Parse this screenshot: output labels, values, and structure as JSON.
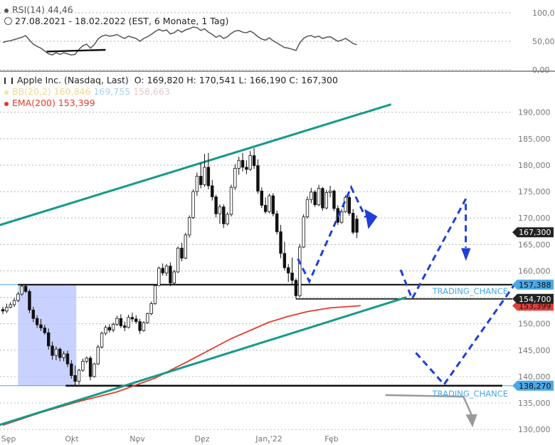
{
  "header": {
    "rsi_label": "RSI(14)",
    "rsi_value": "44,46",
    "range": "27.08.2021 - 18.02.2022",
    "range_info": "(EST, 6 Monate, 1 Tag)",
    "instrument": "Apple Inc. (Nasdaq, Last)",
    "ohlc": "O: 169,820  H: 170,541  L: 166,190  C: 167,300",
    "bb_label": "BB(20,2)",
    "bb_mid": "160,846",
    "bb_upper": "169,755",
    "bb_lower": "158,663",
    "ema_label": "EMA(200)",
    "ema_value": "153,399"
  },
  "colors": {
    "candle": "#111111",
    "ema": "#e53a2a",
    "channel": "#159a88",
    "forecast": "#1e3fd8",
    "zone": "#b7c2ff",
    "label_blue": "#4aa8e6",
    "label_dark": "#222222",
    "label_red": "#e0413a",
    "annotation": "#4aa8e6",
    "grey_arrow": "#9a9a9a"
  },
  "chart_data": {
    "type": "candlestick",
    "x_tick_labels": [
      "Sep",
      "Okt",
      "Nov",
      "Dez",
      "Jan '22",
      "Feb"
    ],
    "y_tick_labels": [
      "130,000",
      "135,000",
      "140,000",
      "145,000",
      "150,000",
      "155,000",
      "160,000",
      "165,000",
      "170,000",
      "175,000",
      "180,000",
      "185,000",
      "190,000"
    ],
    "y_range": [
      128.0,
      194.0
    ],
    "rsi_tick_labels": [
      "0,00",
      "50,00",
      "100,00"
    ],
    "rsi_range": [
      0,
      100
    ],
    "price_labels": {
      "support_upper": "157,388",
      "last": "167,300",
      "support_lower": "154,700",
      "ema_last": "153,399",
      "bottom": "138,270"
    },
    "levels": {
      "support_upper": 157.39,
      "support_lower": 154.7,
      "bottom": 138.27
    },
    "annotations": [
      "TRADING_CHANCE",
      "TRADING_CHANCE"
    ],
    "candles": [
      [
        152.7,
        153.2,
        151.8,
        152.4
      ],
      [
        152.4,
        153.8,
        152.0,
        153.1
      ],
      [
        153.1,
        154.1,
        152.9,
        153.6
      ],
      [
        153.6,
        154.9,
        153.2,
        154.4
      ],
      [
        154.4,
        156.0,
        154.1,
        155.6
      ],
      [
        155.6,
        157.3,
        155.3,
        157.1
      ],
      [
        157.1,
        157.3,
        155.8,
        156.1
      ],
      [
        156.1,
        156.5,
        152.0,
        152.6
      ],
      [
        152.6,
        153.2,
        150.3,
        151.0
      ],
      [
        151.0,
        151.6,
        149.2,
        149.8
      ],
      [
        149.8,
        150.9,
        148.6,
        149.2
      ],
      [
        149.2,
        149.8,
        147.9,
        148.3
      ],
      [
        148.3,
        149.1,
        145.1,
        145.8
      ],
      [
        145.8,
        146.6,
        143.2,
        144.0
      ],
      [
        144.0,
        145.7,
        143.1,
        145.2
      ],
      [
        145.2,
        145.5,
        142.9,
        143.6
      ],
      [
        143.6,
        144.8,
        142.9,
        144.3
      ],
      [
        144.3,
        144.9,
        141.8,
        142.4
      ],
      [
        142.4,
        143.1,
        139.6,
        140.2
      ],
      [
        140.2,
        142.1,
        138.3,
        139.1
      ],
      [
        139.1,
        141.5,
        138.5,
        141.2
      ],
      [
        141.2,
        143.4,
        140.9,
        142.9
      ],
      [
        142.9,
        143.8,
        142.5,
        143.5
      ],
      [
        143.5,
        143.9,
        139.3,
        140.0
      ],
      [
        140.0,
        142.6,
        139.8,
        142.4
      ],
      [
        142.4,
        146.0,
        142.2,
        145.6
      ],
      [
        145.6,
        148.5,
        145.3,
        148.2
      ],
      [
        148.2,
        149.7,
        147.8,
        149.3
      ],
      [
        149.3,
        149.9,
        148.3,
        148.8
      ],
      [
        148.8,
        150.2,
        148.4,
        149.9
      ],
      [
        149.9,
        151.5,
        149.6,
        151.0
      ],
      [
        151.0,
        151.8,
        149.2,
        149.6
      ],
      [
        149.6,
        150.4,
        148.6,
        149.3
      ],
      [
        149.3,
        151.7,
        149.1,
        151.2
      ],
      [
        151.2,
        152.1,
        150.3,
        150.9
      ],
      [
        150.9,
        151.6,
        150.0,
        150.4
      ],
      [
        150.4,
        150.9,
        148.1,
        148.7
      ],
      [
        148.7,
        150.5,
        148.5,
        150.2
      ],
      [
        150.2,
        152.1,
        150.0,
        151.9
      ],
      [
        151.9,
        154.2,
        151.6,
        153.8
      ],
      [
        153.8,
        157.5,
        153.6,
        157.2
      ],
      [
        157.2,
        160.8,
        157.1,
        160.5
      ],
      [
        160.5,
        161.4,
        159.1,
        159.6
      ],
      [
        159.6,
        161.3,
        159.0,
        160.9
      ],
      [
        160.9,
        161.6,
        157.1,
        157.7
      ],
      [
        157.7,
        160.2,
        157.3,
        159.8
      ],
      [
        159.8,
        164.6,
        159.6,
        164.3
      ],
      [
        164.3,
        165.3,
        161.8,
        162.4
      ],
      [
        162.4,
        167.2,
        162.2,
        166.8
      ],
      [
        166.8,
        170.5,
        166.3,
        170.1
      ],
      [
        170.1,
        175.4,
        169.8,
        175.0
      ],
      [
        175.0,
        178.6,
        174.2,
        177.9
      ],
      [
        177.9,
        180.4,
        175.6,
        176.3
      ],
      [
        176.3,
        182.1,
        175.9,
        179.6
      ],
      [
        179.6,
        182.3,
        175.4,
        176.1
      ],
      [
        176.1,
        177.2,
        173.3,
        174.0
      ],
      [
        174.0,
        174.4,
        170.1,
        170.8
      ],
      [
        170.8,
        172.6,
        168.9,
        172.1
      ],
      [
        172.1,
        172.6,
        168.1,
        168.9
      ],
      [
        168.9,
        171.1,
        168.6,
        170.7
      ],
      [
        170.7,
        176.3,
        170.3,
        175.8
      ],
      [
        175.8,
        180.2,
        175.3,
        179.4
      ],
      [
        179.4,
        181.6,
        178.2,
        180.9
      ],
      [
        180.9,
        182.3,
        178.8,
        179.6
      ],
      [
        179.6,
        180.9,
        178.3,
        179.2
      ],
      [
        179.2,
        182.7,
        178.9,
        181.8
      ],
      [
        181.8,
        183.2,
        179.3,
        179.9
      ],
      [
        179.9,
        181.1,
        174.6,
        175.1
      ],
      [
        175.1,
        175.8,
        171.9,
        172.4
      ],
      [
        172.4,
        173.9,
        170.8,
        171.2
      ],
      [
        171.2,
        174.6,
        170.9,
        174.2
      ],
      [
        174.2,
        174.7,
        170.3,
        170.8
      ],
      [
        170.8,
        171.4,
        166.9,
        167.4
      ],
      [
        167.4,
        168.7,
        162.4,
        163.3
      ],
      [
        163.3,
        165.5,
        160.1,
        160.6
      ],
      [
        160.6,
        161.3,
        157.9,
        159.6
      ],
      [
        159.6,
        162.5,
        157.4,
        158.2
      ],
      [
        158.2,
        158.6,
        154.7,
        155.3
      ],
      [
        155.3,
        165.1,
        155.0,
        164.5
      ],
      [
        164.5,
        170.7,
        164.3,
        170.2
      ],
      [
        170.2,
        174.1,
        169.9,
        173.5
      ],
      [
        173.5,
        175.7,
        172.8,
        174.9
      ],
      [
        174.9,
        175.3,
        172.1,
        172.5
      ],
      [
        172.5,
        176.3,
        172.2,
        175.6
      ],
      [
        175.6,
        175.9,
        171.4,
        171.9
      ],
      [
        171.9,
        175.3,
        171.6,
        174.8
      ],
      [
        174.8,
        176.1,
        173.9,
        175.1
      ],
      [
        175.1,
        175.4,
        171.3,
        171.8
      ],
      [
        171.8,
        172.4,
        168.7,
        169.2
      ],
      [
        169.2,
        171.7,
        168.9,
        171.2
      ],
      [
        171.2,
        174.3,
        171.0,
        173.9
      ],
      [
        173.9,
        174.3,
        170.4,
        170.9
      ],
      [
        170.9,
        171.7,
        166.9,
        167.3
      ],
      [
        169.8,
        170.5,
        166.2,
        167.3
      ]
    ],
    "ema": [
      [
        0,
        130.8
      ],
      [
        10,
        133.2
      ],
      [
        20,
        135.3
      ],
      [
        30,
        137.1
      ],
      [
        40,
        139.7
      ],
      [
        50,
        143.4
      ],
      [
        60,
        147.2
      ],
      [
        70,
        150.3
      ],
      [
        75,
        151.4
      ],
      [
        80,
        152.3
      ],
      [
        86,
        153.0
      ],
      [
        94,
        153.4
      ]
    ],
    "channel_upper": [
      [
        -2,
        168.4
      ],
      [
        102,
        191.5
      ]
    ],
    "channel_lower": [
      [
        -2,
        130.6
      ],
      [
        106,
        155.0
      ]
    ],
    "rsi": [
      [
        0,
        48
      ],
      [
        1,
        50
      ],
      [
        2,
        51
      ],
      [
        3,
        53
      ],
      [
        4,
        55
      ],
      [
        5,
        57
      ],
      [
        6,
        60
      ],
      [
        7,
        52
      ],
      [
        8,
        45
      ],
      [
        9,
        41
      ],
      [
        10,
        38
      ],
      [
        11,
        33
      ],
      [
        12,
        28
      ],
      [
        13,
        26
      ],
      [
        14,
        30
      ],
      [
        15,
        27
      ],
      [
        16,
        30
      ],
      [
        17,
        28
      ],
      [
        18,
        26
      ],
      [
        19,
        27
      ],
      [
        20,
        36
      ],
      [
        21,
        42
      ],
      [
        22,
        45
      ],
      [
        23,
        38
      ],
      [
        24,
        44
      ],
      [
        25,
        54
      ],
      [
        26,
        59
      ],
      [
        27,
        61
      ],
      [
        28,
        59
      ],
      [
        29,
        60
      ],
      [
        30,
        62
      ],
      [
        31,
        58
      ],
      [
        32,
        55
      ],
      [
        33,
        59
      ],
      [
        34,
        57
      ],
      [
        35,
        55
      ],
      [
        36,
        50
      ],
      [
        37,
        55
      ],
      [
        38,
        58
      ],
      [
        39,
        62
      ],
      [
        40,
        67
      ],
      [
        41,
        71
      ],
      [
        42,
        68
      ],
      [
        43,
        70
      ],
      [
        44,
        63
      ],
      [
        45,
        65
      ],
      [
        46,
        70
      ],
      [
        47,
        66
      ],
      [
        48,
        70
      ],
      [
        49,
        72
      ],
      [
        50,
        75
      ],
      [
        51,
        74
      ],
      [
        52,
        69
      ],
      [
        53,
        72
      ],
      [
        54,
        66
      ],
      [
        55,
        62
      ],
      [
        56,
        57
      ],
      [
        57,
        60
      ],
      [
        58,
        55
      ],
      [
        59,
        58
      ],
      [
        60,
        64
      ],
      [
        61,
        68
      ],
      [
        62,
        69
      ],
      [
        63,
        66
      ],
      [
        64,
        65
      ],
      [
        65,
        68
      ],
      [
        66,
        64
      ],
      [
        67,
        58
      ],
      [
        68,
        54
      ],
      [
        69,
        52
      ],
      [
        70,
        56
      ],
      [
        71,
        51
      ],
      [
        72,
        47
      ],
      [
        73,
        43
      ],
      [
        74,
        39
      ],
      [
        75,
        38
      ],
      [
        76,
        36
      ],
      [
        77,
        34
      ],
      [
        78,
        47
      ],
      [
        79,
        55
      ],
      [
        80,
        59
      ],
      [
        81,
        60
      ],
      [
        82,
        57
      ],
      [
        83,
        59
      ],
      [
        84,
        55
      ],
      [
        85,
        57
      ],
      [
        86,
        58
      ],
      [
        87,
        54
      ],
      [
        88,
        50
      ],
      [
        89,
        52
      ],
      [
        90,
        55
      ],
      [
        91,
        51
      ],
      [
        92,
        46
      ],
      [
        93,
        44
      ]
    ]
  }
}
